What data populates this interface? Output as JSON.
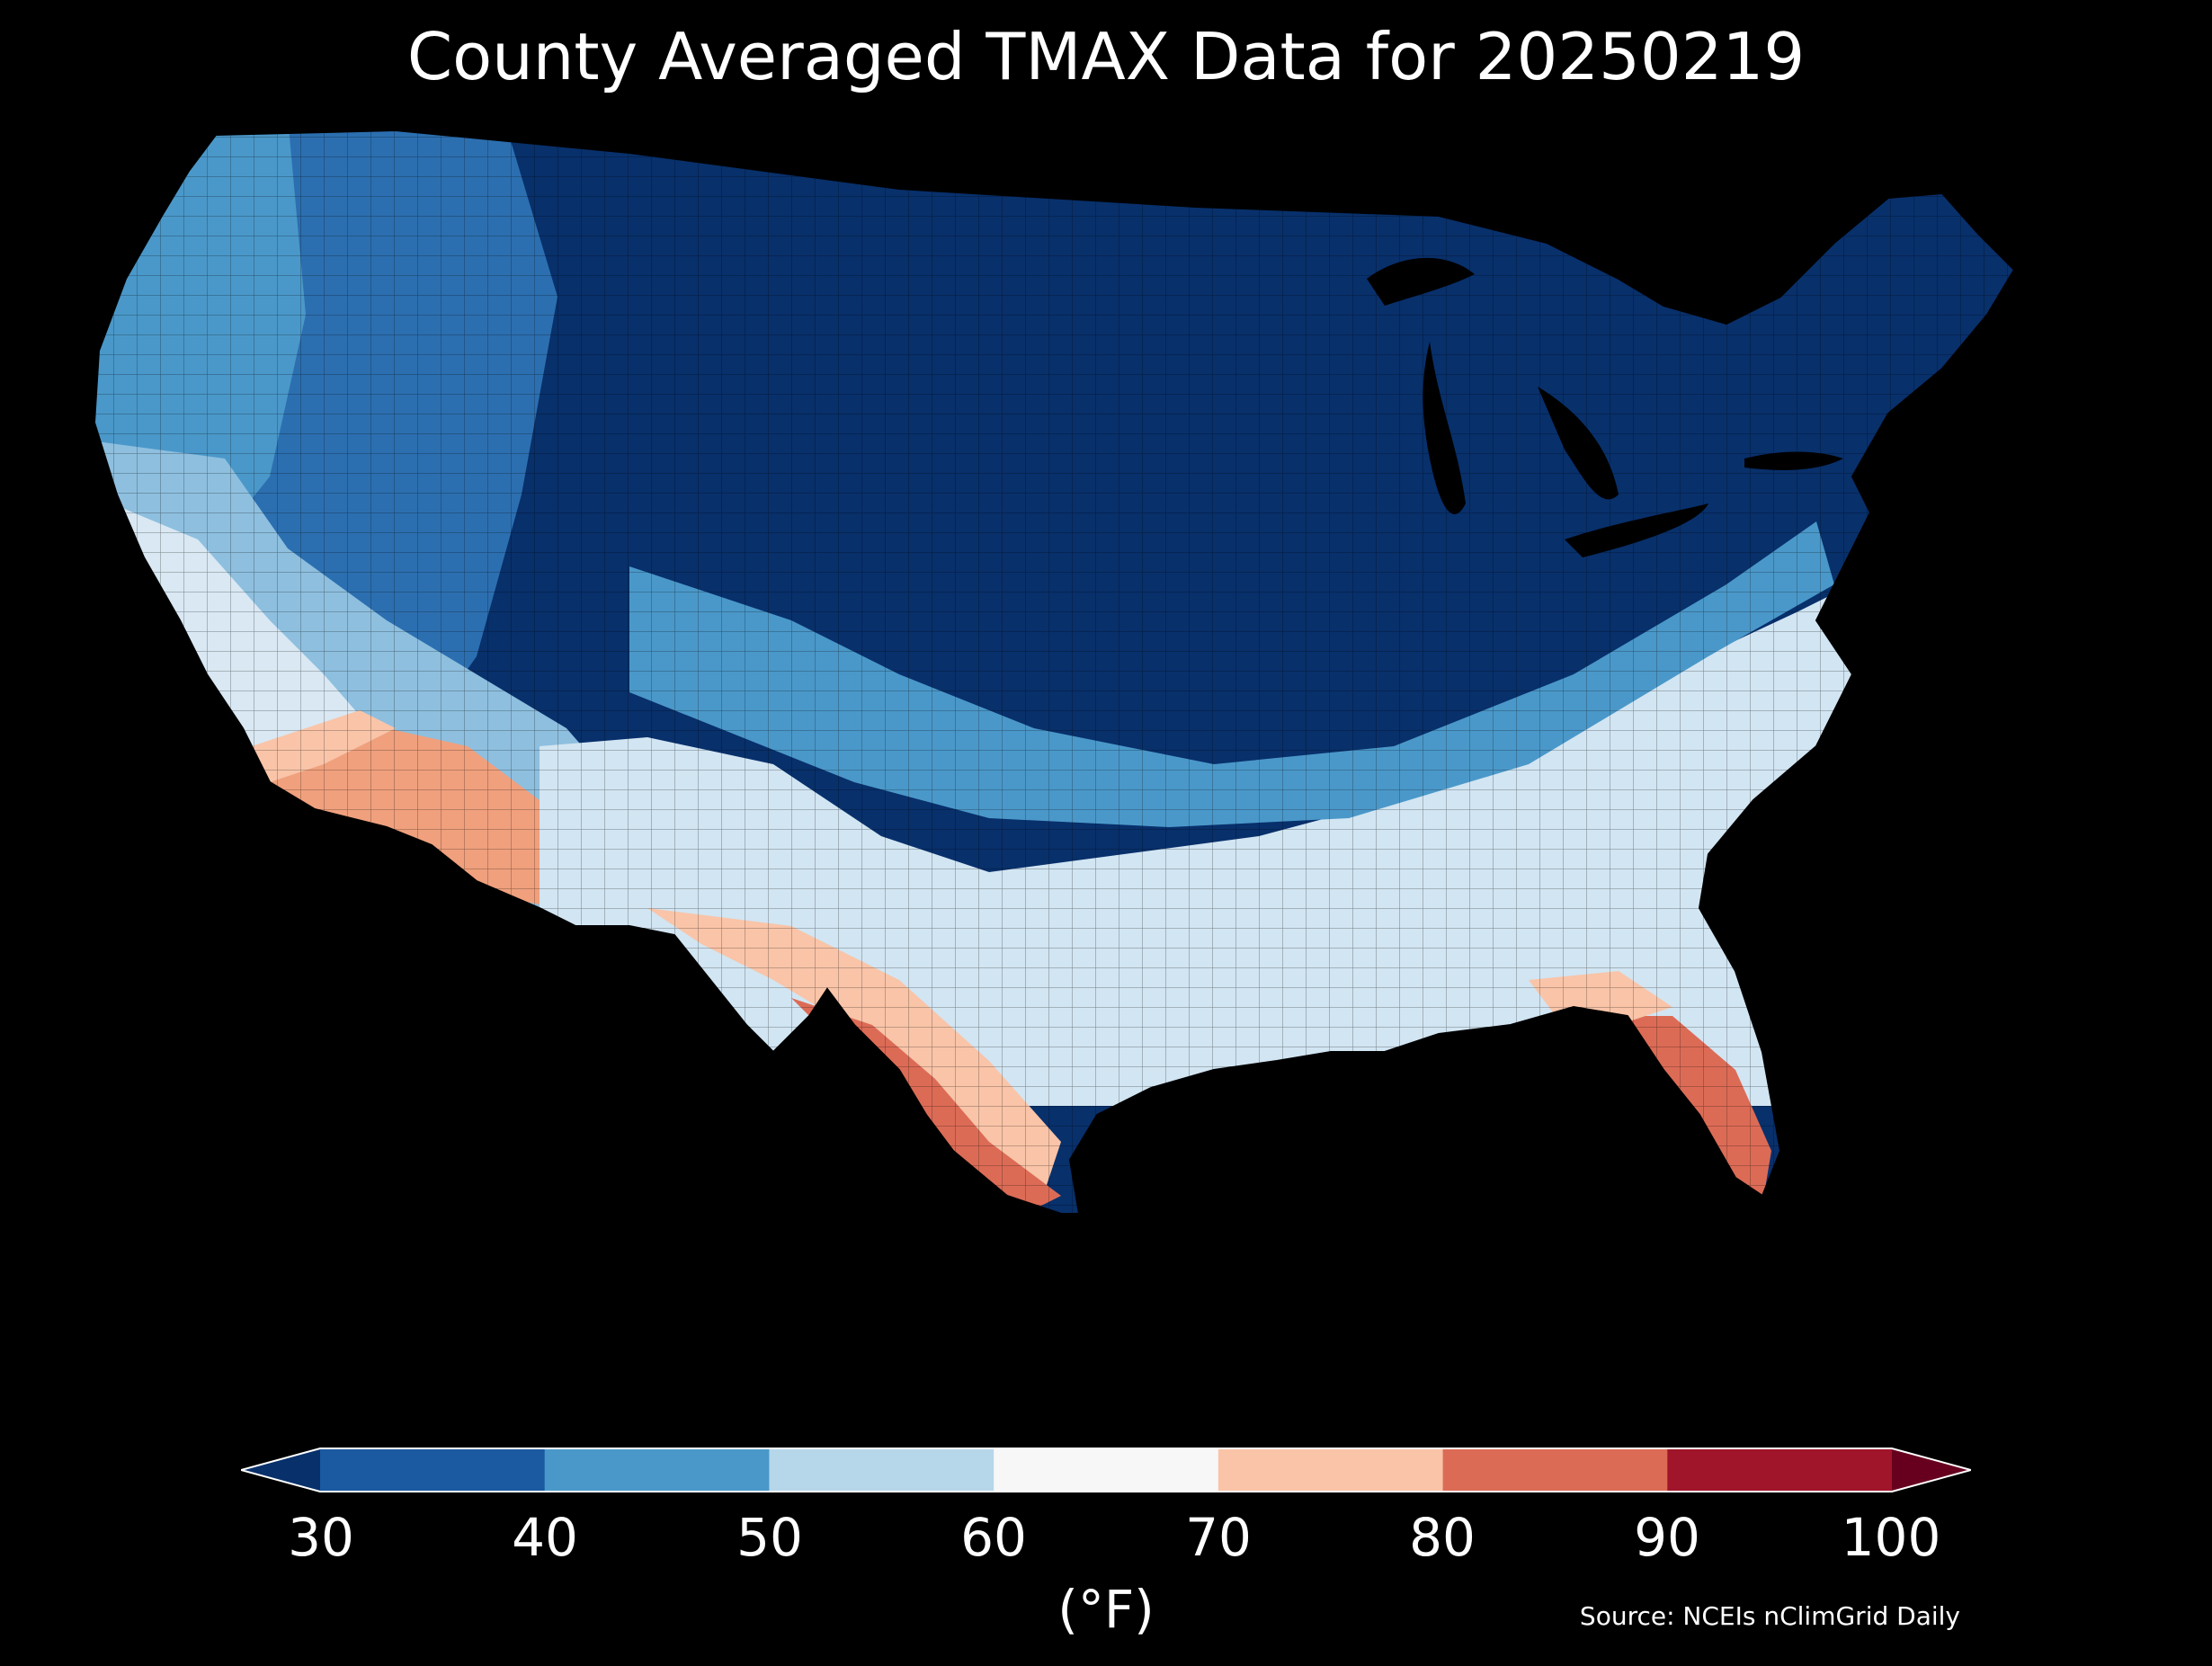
{
  "title": "County Averaged TMAX Data for 20250219",
  "colorbar": {
    "unit": "(°F)",
    "ticks": [
      "30",
      "40",
      "50",
      "60",
      "70",
      "80",
      "90",
      "100"
    ],
    "bins": [
      {
        "min": 30,
        "max": 40,
        "color": "#1b5aa0"
      },
      {
        "min": 40,
        "max": 50,
        "color": "#4a98c9"
      },
      {
        "min": 50,
        "max": 60,
        "color": "#b6d6ea"
      },
      {
        "min": 60,
        "max": 70,
        "color": "#f7f7f7"
      },
      {
        "min": 70,
        "max": 80,
        "color": "#f9c4a8"
      },
      {
        "min": 80,
        "max": 90,
        "color": "#dc6b56"
      },
      {
        "min": 90,
        "max": 100,
        "color": "#a0152a"
      }
    ],
    "under_color": "#08306b",
    "over_color": "#67001f"
  },
  "source": "Source: NCEIs nClimGrid Daily",
  "map": {
    "background": "#000000",
    "region_colors": {
      "north_deep": "#08306b",
      "mountain_blue": "#2c6fb0",
      "mid_blue": "#4a98c9",
      "light_blue": "#b6d6ea",
      "near_white": "#eef4f9",
      "warm_light": "#f9c4a8",
      "warm_mid": "#f0a07d",
      "warm_deep": "#dc6b56",
      "warm_darkest": "#c84a3e"
    }
  }
}
